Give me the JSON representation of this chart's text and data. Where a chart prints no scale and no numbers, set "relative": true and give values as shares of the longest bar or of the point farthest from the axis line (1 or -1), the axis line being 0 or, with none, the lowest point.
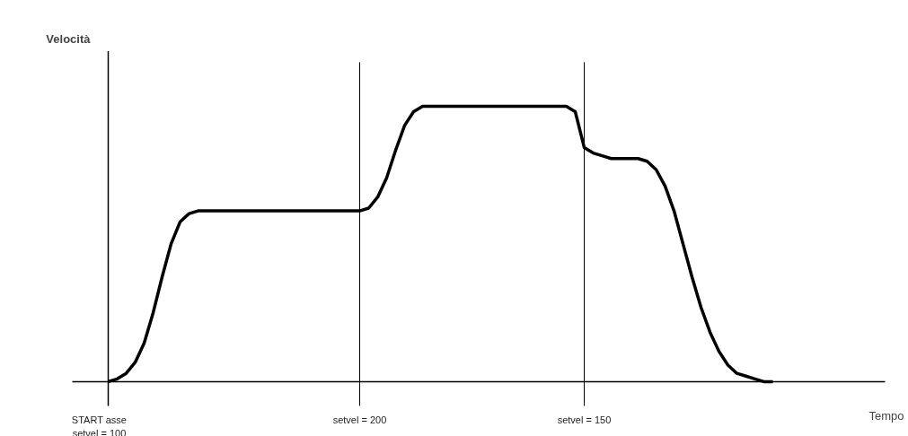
{
  "chart_data": {
    "type": "line",
    "relative": true,
    "annotations": [
      "Velocità",
      "Tempo"
    ],
    "categories": [
      "START asse\nsetvel = 100",
      null,
      null,
      null,
      null,
      null,
      null,
      null,
      null,
      null,
      null,
      null,
      null,
      null,
      null,
      null,
      null,
      null,
      null,
      null,
      null,
      null,
      null,
      null,
      null,
      null,
      null,
      null,
      "setvel = 200",
      null,
      null,
      null,
      null,
      null,
      null,
      null,
      null,
      null,
      null,
      null,
      null,
      null,
      null,
      null,
      null,
      null,
      null,
      null,
      null,
      null,
      null,
      null,
      null,
      "setvel = 150",
      null,
      null,
      null,
      null,
      null,
      null,
      null,
      null,
      null,
      null,
      null,
      null,
      null,
      null,
      null,
      null,
      null,
      null,
      null,
      null,
      null
    ],
    "series": [
      {
        "color": "#000000",
        "values": [
          0,
          0.01,
          0.03,
          0.07,
          0.14,
          0.25,
          0.38,
          0.5,
          0.58,
          0.61,
          0.62,
          0.62,
          0.62,
          0.62,
          0.62,
          0.62,
          0.62,
          0.62,
          0.62,
          0.62,
          0.62,
          0.62,
          0.62,
          0.62,
          0.62,
          0.62,
          0.62,
          0.62,
          0.62,
          0.63,
          0.67,
          0.74,
          0.84,
          0.93,
          0.98,
          1,
          1,
          1,
          1,
          1,
          1,
          1,
          1,
          1,
          1,
          1,
          1,
          1,
          1,
          1,
          1,
          1,
          0.98,
          0.85,
          0.83,
          0.82,
          0.81,
          0.81,
          0.81,
          0.81,
          0.8,
          0.77,
          0.71,
          0.62,
          0.5,
          0.38,
          0.27,
          0.18,
          0.11,
          0.06,
          0.03,
          0.02,
          0.01,
          0,
          0
        ]
      }
    ],
    "grid": "x",
    "marker": "none",
    "line_style": "solid"
  }
}
